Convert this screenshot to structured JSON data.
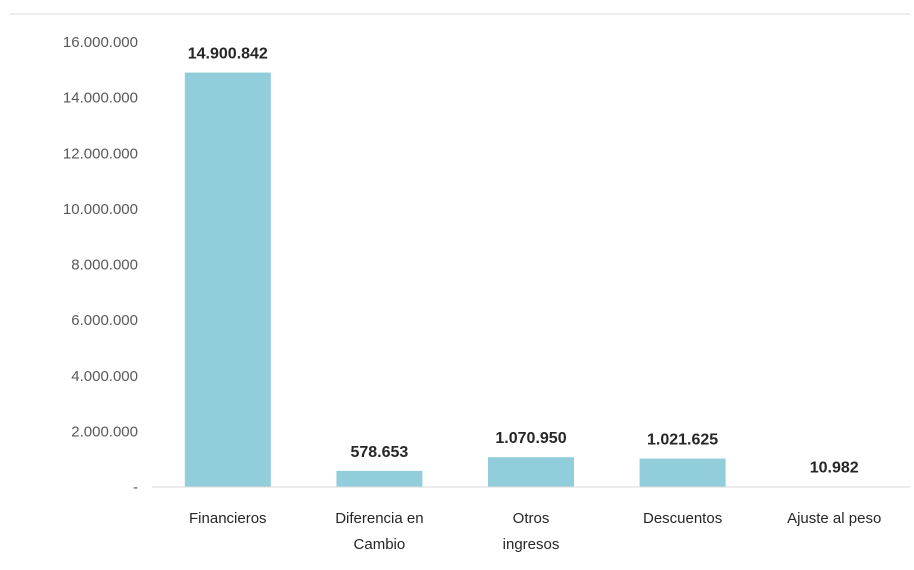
{
  "chart_data": {
    "type": "bar",
    "title": "",
    "xlabel": "",
    "ylabel": "",
    "categories": [
      [
        "Financieros"
      ],
      [
        "Diferencia en",
        "Cambio"
      ],
      [
        "Otros",
        "ingresos"
      ],
      [
        "Descuentos"
      ],
      [
        "Ajuste al peso"
      ]
    ],
    "values": [
      14900842,
      578653,
      1070950,
      1021625,
      10982
    ],
    "data_labels": [
      "14.900.842",
      "578.653",
      "1.070.950",
      "1.021.625",
      "10.982"
    ],
    "ylim": [
      0,
      16000000
    ],
    "yticks": [
      0,
      2000000,
      4000000,
      6000000,
      8000000,
      10000000,
      12000000,
      14000000,
      16000000
    ],
    "ytick_labels": [
      "-",
      "2.000.000",
      "4.000.000",
      "6.000.000",
      "8.000.000",
      "10.000.000",
      "12.000.000",
      "14.000.000",
      "16.000.000"
    ],
    "grid": false,
    "legend": "none",
    "bar_color": "#92CDDC",
    "axis_color": "#D9D9D9"
  }
}
